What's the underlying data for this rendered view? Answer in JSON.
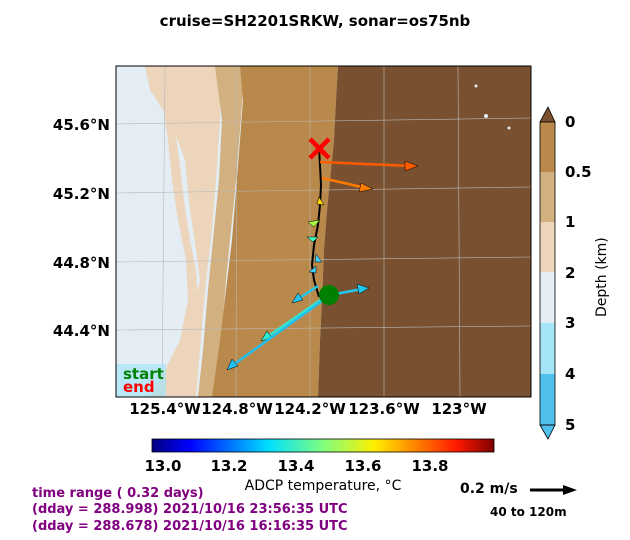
{
  "title": "cruise=SH2201SRKW,   sonar=os75nb",
  "map": {
    "lat_labels": [
      "45.6°N",
      "45.2°N",
      "44.8°N",
      "44.4°N"
    ],
    "lon_labels": [
      "125.4°W",
      "124.8°W",
      "124.2°W",
      "123.6°W",
      "123°W"
    ],
    "start_label": "start",
    "end_label": "end",
    "start_color": "#008000",
    "end_color": "#ff0000",
    "depth_colors": [
      "#7a5130",
      "#b9894c",
      "#d2b07f",
      "#ecd5bb",
      "#e3edf3",
      "#a6e4f8",
      "#50c0ec"
    ]
  },
  "depth_colorbar": {
    "ticks": [
      "0",
      "0.5",
      "1",
      "2",
      "3",
      "4",
      "5"
    ],
    "label": "Depth (km)"
  },
  "temp_colorbar": {
    "ticks": [
      "13.0",
      "13.2",
      "13.4",
      "13.6",
      "13.8"
    ],
    "label": "ADCP temperature, °C",
    "range": [
      12.95,
      13.97
    ]
  },
  "info": {
    "line1": "time range ( 0.32 days)",
    "line2": "(dday = 288.998) 2021/10/16 23:56:35 UTC",
    "line3": "(dday = 288.678) 2021/10/16 16:16:35 UTC",
    "color": "#800080"
  },
  "scale": {
    "speed_label": "0.2 m/s",
    "depth_range_label": "40 to 120m"
  }
}
